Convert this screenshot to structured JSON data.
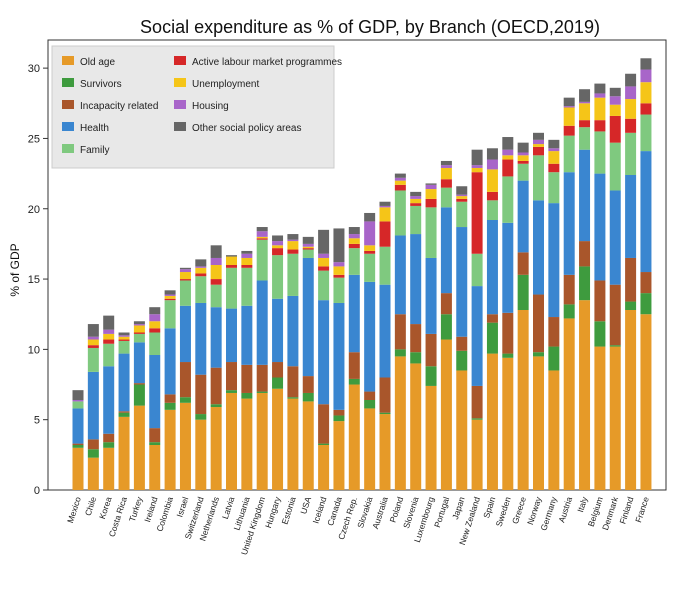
{
  "chart_data": {
    "type": "bar",
    "stacked": true,
    "title": "Social expenditure as % of GDP, by Branch (OECD,2019)",
    "xlabel": "",
    "ylabel": "% of GDP",
    "ylim": [
      0,
      32
    ],
    "yticks": [
      0,
      5,
      10,
      15,
      20,
      25,
      30
    ],
    "grid": false,
    "legend_position": "top-left",
    "categories": [
      "Mexico",
      "Chile",
      "Korea",
      "Costa Rica",
      "Turkey",
      "Ireland",
      "Colombia",
      "Israel",
      "Switzerland",
      "Netherlands",
      "Latvia",
      "Lithuania",
      "United Kingdom",
      "Hungary",
      "Estonia",
      "USA",
      "Iceland",
      "Canada",
      "Czech Rep.",
      "Slovakia",
      "Australia",
      "Poland",
      "Slovenia",
      "Luxembourg",
      "Portugal",
      "Japan",
      "New Zealand",
      "Spain",
      "Sweden",
      "Greece",
      "Norway",
      "Germany",
      "Austria",
      "Italy",
      "Belgium",
      "Denmark",
      "Finland",
      "France"
    ],
    "series": [
      {
        "name": "Old age",
        "color": "#E69A28",
        "values": [
          3.0,
          2.3,
          3.0,
          5.2,
          6.0,
          3.2,
          5.7,
          6.2,
          5.0,
          5.9,
          6.9,
          6.5,
          6.9,
          7.2,
          6.5,
          6.3,
          3.2,
          4.9,
          7.5,
          5.8,
          5.4,
          9.5,
          9.0,
          7.4,
          10.7,
          8.5,
          5.0,
          9.7,
          9.4,
          12.8,
          9.5,
          8.5,
          12.2,
          13.5,
          10.2,
          10.2,
          12.8,
          12.5
        ]
      },
      {
        "name": "Survivors",
        "color": "#3E9B3E",
        "values": [
          0.2,
          0.6,
          0.4,
          0.3,
          1.5,
          0.2,
          0.5,
          0.4,
          0.4,
          0.2,
          0.2,
          0.4,
          0.1,
          0.8,
          0.1,
          0.6,
          0.1,
          0.4,
          0.4,
          0.6,
          0.1,
          0.5,
          0.8,
          1.4,
          1.8,
          1.4,
          0.1,
          2.2,
          0.3,
          2.5,
          0.3,
          1.7,
          1.0,
          2.4,
          1.8,
          0.1,
          0.6,
          1.5
        ]
      },
      {
        "name": "Incapacity related",
        "color": "#A9562B",
        "values": [
          0.1,
          0.7,
          0.6,
          0.1,
          0.1,
          1.0,
          0.6,
          2.5,
          2.8,
          2.6,
          2.0,
          2.0,
          1.9,
          1.1,
          2.2,
          1.2,
          2.8,
          0.4,
          1.9,
          0.6,
          2.5,
          2.5,
          2.0,
          2.3,
          1.5,
          1.0,
          2.3,
          0.6,
          2.9,
          1.6,
          4.1,
          2.1,
          2.1,
          1.8,
          2.9,
          4.3,
          3.1,
          1.5
        ]
      },
      {
        "name": "Health",
        "color": "#3A86D0",
        "values": [
          2.5,
          4.8,
          4.8,
          4.1,
          2.9,
          5.2,
          4.7,
          4.0,
          5.1,
          4.3,
          3.8,
          4.2,
          6.0,
          4.5,
          5.0,
          8.4,
          7.4,
          7.6,
          5.5,
          7.8,
          6.6,
          5.6,
          6.4,
          5.4,
          6.1,
          7.8,
          7.1,
          6.7,
          6.4,
          5.1,
          6.7,
          8.1,
          7.3,
          6.5,
          7.6,
          6.7,
          5.9,
          8.6
        ]
      },
      {
        "name": "Family",
        "color": "#7FC97F",
        "values": [
          0.5,
          1.7,
          1.6,
          0.9,
          0.6,
          1.6,
          2.0,
          1.8,
          1.9,
          1.6,
          2.9,
          2.7,
          2.9,
          3.1,
          3.0,
          0.6,
          2.1,
          1.8,
          1.9,
          2.0,
          2.7,
          3.2,
          2.0,
          3.6,
          1.4,
          1.8,
          2.3,
          1.4,
          3.3,
          1.2,
          3.2,
          2.2,
          2.6,
          1.6,
          3.0,
          3.4,
          3.0,
          2.6
        ]
      },
      {
        "name": "Active labour market programmes",
        "color": "#D62728",
        "values": [
          0.0,
          0.2,
          0.3,
          0.1,
          0.1,
          0.3,
          0.1,
          0.1,
          0.2,
          0.4,
          0.2,
          0.2,
          0.1,
          0.5,
          0.3,
          0.1,
          0.3,
          0.2,
          0.3,
          0.2,
          1.8,
          0.4,
          0.2,
          0.6,
          0.6,
          0.2,
          5.8,
          0.6,
          1.2,
          0.2,
          0.6,
          0.6,
          0.7,
          0.5,
          0.8,
          1.9,
          1.0,
          0.8
        ]
      },
      {
        "name": "Unemployment",
        "color": "#F5C518",
        "values": [
          0.0,
          0.4,
          0.4,
          0.2,
          0.5,
          0.5,
          0.2,
          0.5,
          0.4,
          1.0,
          0.6,
          0.5,
          0.1,
          0.2,
          0.6,
          0.1,
          0.6,
          0.6,
          0.4,
          0.4,
          1.0,
          0.3,
          0.3,
          0.7,
          0.8,
          0.2,
          0.3,
          1.6,
          0.3,
          0.4,
          0.2,
          0.9,
          1.3,
          1.2,
          1.6,
          0.8,
          1.4,
          1.5
        ]
      },
      {
        "name": "Housing",
        "color": "#A865C9",
        "values": [
          0.1,
          0.2,
          0.3,
          0.1,
          0.1,
          0.5,
          0.1,
          0.2,
          0.1,
          0.5,
          0.0,
          0.3,
          0.4,
          0.3,
          0.1,
          0.2,
          0.3,
          0.3,
          0.3,
          1.7,
          0.1,
          0.2,
          0.2,
          0.3,
          0.2,
          0.1,
          0.2,
          0.7,
          0.4,
          0.2,
          0.3,
          0.2,
          0.1,
          0.1,
          0.3,
          0.6,
          0.9,
          0.9
        ]
      },
      {
        "name": "Other social policy areas",
        "color": "#666666",
        "values": [
          0.7,
          0.9,
          1.0,
          0.2,
          0.2,
          0.5,
          0.3,
          0.1,
          0.5,
          0.9,
          0.1,
          0.2,
          0.3,
          0.4,
          0.4,
          0.5,
          1.7,
          2.4,
          0.5,
          0.6,
          0.3,
          0.3,
          0.3,
          0.1,
          0.3,
          0.6,
          1.1,
          0.8,
          0.9,
          0.7,
          0.5,
          0.6,
          0.6,
          0.9,
          0.7,
          0.6,
          0.9,
          0.8
        ]
      }
    ]
  }
}
